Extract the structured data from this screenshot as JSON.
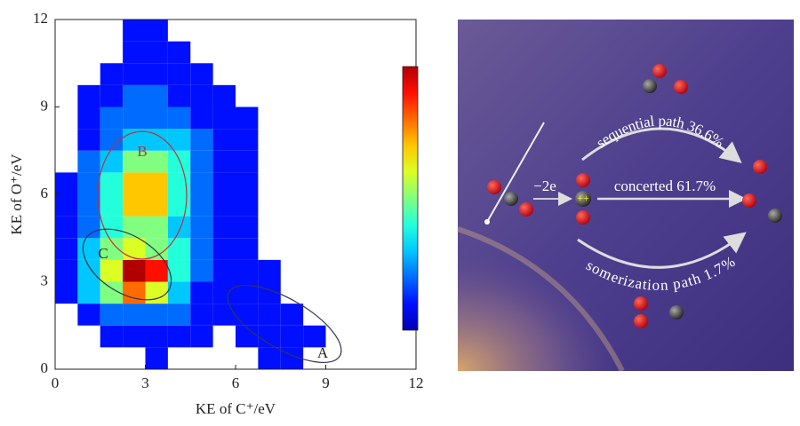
{
  "chart_data": {
    "type": "heatmap",
    "xlabel": "KE of C⁺/eV",
    "ylabel": "KE of O⁺/eV",
    "xlim": [
      0,
      12
    ],
    "ylim": [
      0,
      12
    ],
    "xticks": [
      0,
      3,
      6,
      9,
      12
    ],
    "yticks": [
      0,
      3,
      6,
      9,
      12
    ],
    "xbins": [
      0,
      0.75,
      1.5,
      2.25,
      3,
      3.75,
      4.5,
      5.25,
      6,
      6.75,
      7.5,
      8.25,
      9,
      9.75,
      10.5,
      11.25,
      12
    ],
    "ybins": [
      0,
      0.75,
      1.5,
      2.25,
      3,
      3.75,
      4.5,
      5.25,
      6,
      6.75,
      7.5,
      8.25,
      9,
      9.75,
      10.5,
      11.25,
      12
    ],
    "colormap": "jet",
    "zlim": [
      0,
      10
    ],
    "values": [
      [
        0,
        0,
        0,
        0,
        1,
        0,
        0,
        0,
        0,
        1,
        1,
        0,
        0,
        0,
        0,
        0
      ],
      [
        0,
        0,
        1,
        1,
        1,
        1,
        1,
        0,
        1,
        1,
        1,
        1,
        0,
        0,
        0,
        0
      ],
      [
        0,
        1,
        2,
        2,
        2,
        2,
        1,
        1,
        1,
        1,
        1,
        0,
        0,
        0,
        0,
        0
      ],
      [
        1,
        3,
        5,
        8,
        6,
        3,
        1,
        1,
        1,
        1,
        0,
        0,
        0,
        0,
        0,
        0
      ],
      [
        1,
        3,
        6,
        10,
        9,
        4,
        2,
        1,
        1,
        1,
        0,
        0,
        0,
        0,
        0,
        0
      ],
      [
        1,
        3,
        5,
        6,
        5,
        4,
        2,
        1,
        1,
        0,
        0,
        0,
        0,
        0,
        0,
        0
      ],
      [
        1,
        2,
        4,
        5,
        5,
        3,
        2,
        1,
        1,
        0,
        0,
        0,
        0,
        0,
        0,
        0
      ],
      [
        1,
        2,
        4,
        7,
        7,
        4,
        2,
        1,
        1,
        0,
        0,
        0,
        0,
        0,
        0,
        0
      ],
      [
        1,
        2,
        4,
        7,
        7,
        4,
        2,
        1,
        1,
        0,
        0,
        0,
        0,
        0,
        0,
        0
      ],
      [
        0,
        2,
        3,
        5,
        5,
        4,
        2,
        1,
        1,
        0,
        0,
        0,
        0,
        0,
        0,
        0
      ],
      [
        0,
        1,
        2,
        3,
        3,
        3,
        2,
        1,
        1,
        0,
        0,
        0,
        0,
        0,
        0,
        0
      ],
      [
        0,
        1,
        2,
        2,
        2,
        2,
        1,
        1,
        1,
        0,
        0,
        0,
        0,
        0,
        0,
        0
      ],
      [
        0,
        1,
        1,
        2,
        2,
        1,
        1,
        1,
        0,
        0,
        0,
        0,
        0,
        0,
        0,
        0
      ],
      [
        0,
        0,
        1,
        1,
        1,
        1,
        1,
        0,
        0,
        0,
        0,
        0,
        0,
        0,
        0,
        0
      ],
      [
        0,
        0,
        0,
        1,
        1,
        1,
        0,
        0,
        0,
        0,
        0,
        0,
        0,
        0,
        0,
        0
      ],
      [
        0,
        0,
        0,
        1,
        1,
        0,
        0,
        0,
        0,
        0,
        0,
        0,
        0,
        0,
        0,
        0
      ]
    ],
    "annotations": [
      "A",
      "B",
      "C"
    ]
  },
  "scheme": {
    "ionization": "−2e",
    "sequential": "sequential path 36.6%",
    "concerted": "concerted 61.7%",
    "isomerization": "somerization path 1.7%"
  }
}
